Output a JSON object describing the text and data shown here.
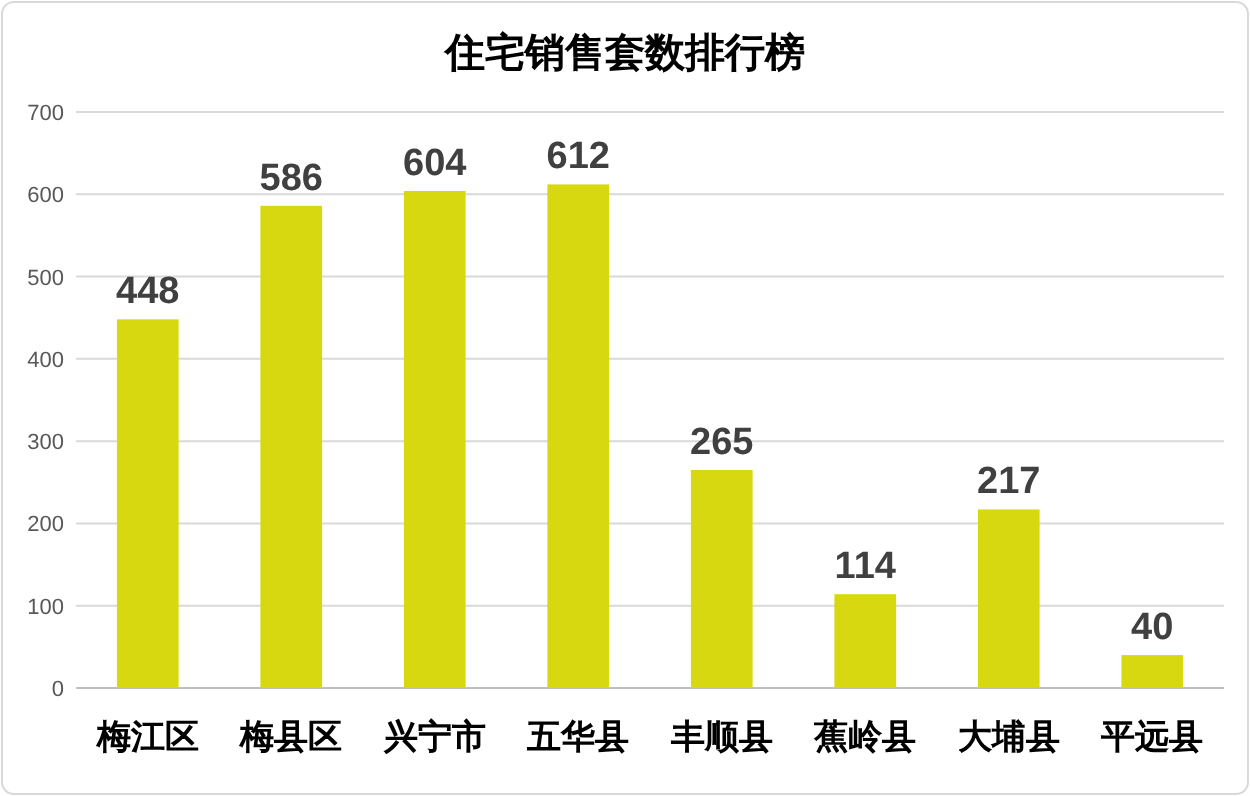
{
  "chart_data": {
    "type": "bar",
    "title": "住宅销售套数排行榜",
    "categories": [
      "梅江区",
      "梅县区",
      "兴宁市",
      "五华县",
      "丰顺县",
      "蕉岭县",
      "大埔县",
      "平远县"
    ],
    "values": [
      448,
      586,
      604,
      612,
      265,
      114,
      217,
      40
    ],
    "color": "#d8d810",
    "ylim": [
      0,
      700
    ],
    "yticks": [
      0,
      100,
      200,
      300,
      400,
      500,
      600,
      700
    ],
    "grid": "y",
    "data_labels": true
  }
}
